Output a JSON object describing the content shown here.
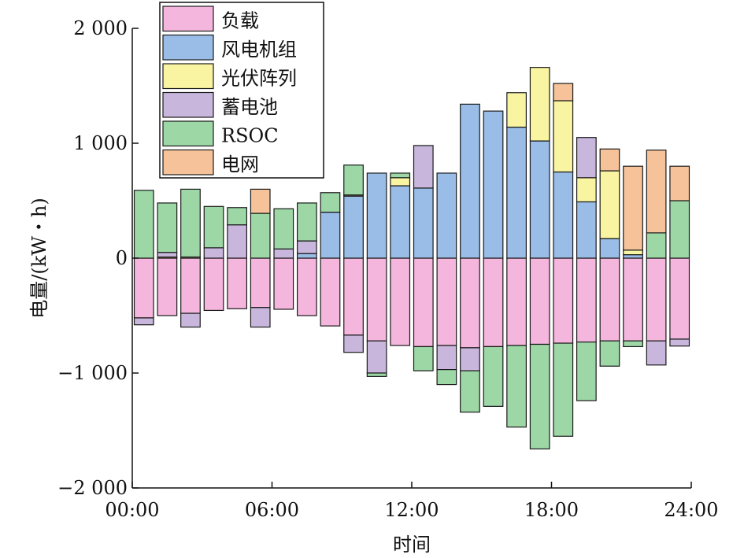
{
  "chart_data": {
    "type": "bar",
    "stacked": true,
    "xlabel": "时间",
    "ylabel": "电量/(kW・h)",
    "ylim": [
      -2000,
      2000
    ],
    "yticks": [
      -2000,
      -1000,
      0,
      1000,
      2000
    ],
    "ytick_labels": [
      "−2 000",
      "−1 000",
      "0",
      "1 000",
      "2 000"
    ],
    "xlim": [
      0,
      24
    ],
    "xticks": [
      0,
      6,
      12,
      18,
      24
    ],
    "xtick_labels": [
      "00:00",
      "06:00",
      "12:00",
      "18:00",
      "24:00"
    ],
    "legend_position": "top-left",
    "x": [
      1,
      2,
      3,
      4,
      5,
      6,
      7,
      8,
      9,
      10,
      11,
      12,
      13,
      14,
      15,
      16,
      17,
      18,
      19,
      20,
      21,
      22,
      23,
      24
    ],
    "series": [
      {
        "name": "负载",
        "color": "#f4b6dc",
        "values": [
          -520,
          -500,
          -480,
          -455,
          -440,
          -430,
          -445,
          -500,
          -590,
          -670,
          -720,
          -760,
          -770,
          -760,
          -780,
          -770,
          -760,
          -750,
          -740,
          -730,
          -720,
          -720,
          -720,
          -705
        ]
      },
      {
        "name": "风电机组",
        "color": "#99bde6",
        "values": [
          0,
          0,
          0,
          0,
          0,
          0,
          0,
          40,
          400,
          540,
          740,
          630,
          610,
          740,
          1340,
          1280,
          1140,
          1020,
          750,
          490,
          170,
          30,
          0,
          0
        ]
      },
      {
        "name": "光伏阵列",
        "color": "#f9f4a1",
        "values": [
          0,
          10,
          10,
          0,
          0,
          0,
          0,
          0,
          0,
          10,
          0,
          70,
          0,
          0,
          0,
          0,
          300,
          640,
          620,
          210,
          590,
          40,
          0,
          0
        ]
      },
      {
        "name": "蓄电池",
        "color": "#c8b6dc",
        "values": [
          -60,
          40,
          -120,
          90,
          290,
          -170,
          80,
          110,
          0,
          -150,
          -280,
          0,
          370,
          -210,
          -200,
          0,
          0,
          0,
          0,
          350,
          0,
          0,
          -210,
          -60
        ]
      },
      {
        "name": "RSOC",
        "color": "#9dd7a6",
        "values": [
          590,
          430,
          590,
          360,
          150,
          390,
          350,
          330,
          170,
          260,
          -30,
          40,
          -210,
          -130,
          -360,
          -520,
          -710,
          -910,
          -810,
          -510,
          -220,
          -50,
          220,
          500
        ]
      },
      {
        "name": "电网",
        "color": "#f5c299",
        "values": [
          0,
          0,
          0,
          0,
          0,
          210,
          0,
          0,
          0,
          0,
          0,
          0,
          0,
          0,
          0,
          0,
          0,
          0,
          150,
          0,
          190,
          730,
          720,
          300
        ]
      }
    ]
  }
}
